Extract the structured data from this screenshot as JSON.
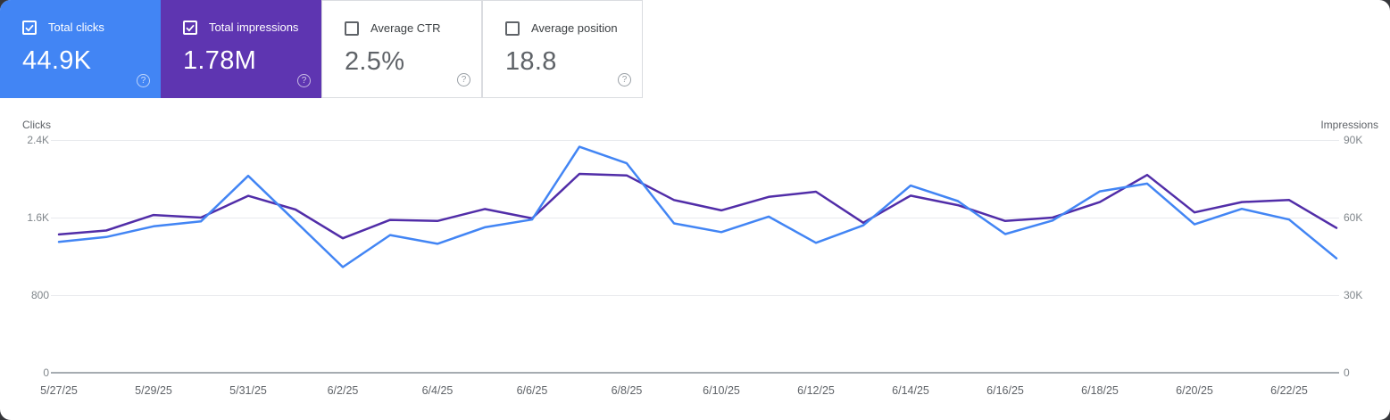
{
  "cards": [
    {
      "label": "Total clicks",
      "value": "44.9K",
      "selected": true,
      "bg": "#4285f4"
    },
    {
      "label": "Total impressions",
      "value": "1.78M",
      "selected": true,
      "bg": "#5e35b1"
    },
    {
      "label": "Average CTR",
      "value": "2.5%",
      "selected": false,
      "bg": "#ffffff"
    },
    {
      "label": "Average position",
      "value": "18.8",
      "selected": false,
      "bg": "#ffffff"
    }
  ],
  "icons": {
    "help_glyph": "?"
  },
  "colors": {
    "clicks": "#4285f4",
    "impressions": "#512da8",
    "gridline": "#e8eaed",
    "baseline": "#9aa0a6"
  },
  "chart_data": {
    "type": "line",
    "x": [
      "5/27/25",
      "5/28/25",
      "5/29/25",
      "5/30/25",
      "5/31/25",
      "6/1/25",
      "6/2/25",
      "6/3/25",
      "6/4/25",
      "6/5/25",
      "6/6/25",
      "6/7/25",
      "6/8/25",
      "6/9/25",
      "6/10/25",
      "6/11/25",
      "6/12/25",
      "6/13/25",
      "6/14/25",
      "6/15/25",
      "6/16/25",
      "6/17/25",
      "6/18/25",
      "6/19/25",
      "6/20/25",
      "6/21/25",
      "6/22/25",
      "6/23/25"
    ],
    "x_tick_labels": [
      "5/27/25",
      "5/29/25",
      "5/31/25",
      "6/2/25",
      "6/4/25",
      "6/6/25",
      "6/8/25",
      "6/10/25",
      "6/12/25",
      "6/14/25",
      "6/16/25",
      "6/18/25",
      "6/20/25",
      "6/22/25"
    ],
    "series": [
      {
        "name": "Clicks",
        "color": "#4285f4",
        "axis": "left",
        "values": [
          1350,
          1400,
          1510,
          1560,
          2030,
          1560,
          1090,
          1420,
          1330,
          1500,
          1580,
          2330,
          2160,
          1540,
          1450,
          1610,
          1340,
          1520,
          1930,
          1770,
          1430,
          1570,
          1870,
          1950,
          1530,
          1690,
          1580,
          1180
        ]
      },
      {
        "name": "Impressions",
        "color": "#512da8",
        "axis": "right",
        "values": [
          53500,
          55000,
          61000,
          60000,
          68400,
          63100,
          52000,
          59100,
          58700,
          63300,
          59700,
          76900,
          76300,
          66800,
          62800,
          68000,
          70000,
          58000,
          68500,
          64800,
          58700,
          60000,
          66000,
          76500,
          62000,
          66000,
          66800,
          56000
        ]
      }
    ],
    "left_axis": {
      "title": "Clicks",
      "max": 2400,
      "ticks_top_down": [
        "2.4K",
        "1.6K",
        "800",
        "0"
      ]
    },
    "right_axis": {
      "title": "Impressions",
      "max": 90000,
      "ticks_top_down": [
        "90K",
        "60K",
        "30K",
        "0"
      ]
    },
    "grid": "horizontal-only",
    "legend": "none"
  }
}
